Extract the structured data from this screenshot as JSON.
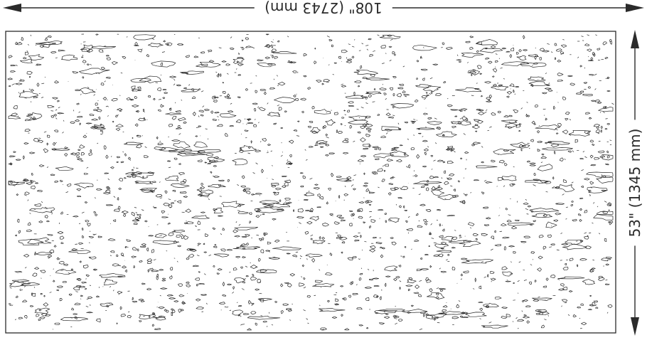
{
  "dimensions": {
    "width_label": "108\" (2743 mm)",
    "height_label": "53\" (1345 mm)"
  },
  "colors": {
    "line": "#2b2b2b",
    "background": "#ffffff"
  }
}
